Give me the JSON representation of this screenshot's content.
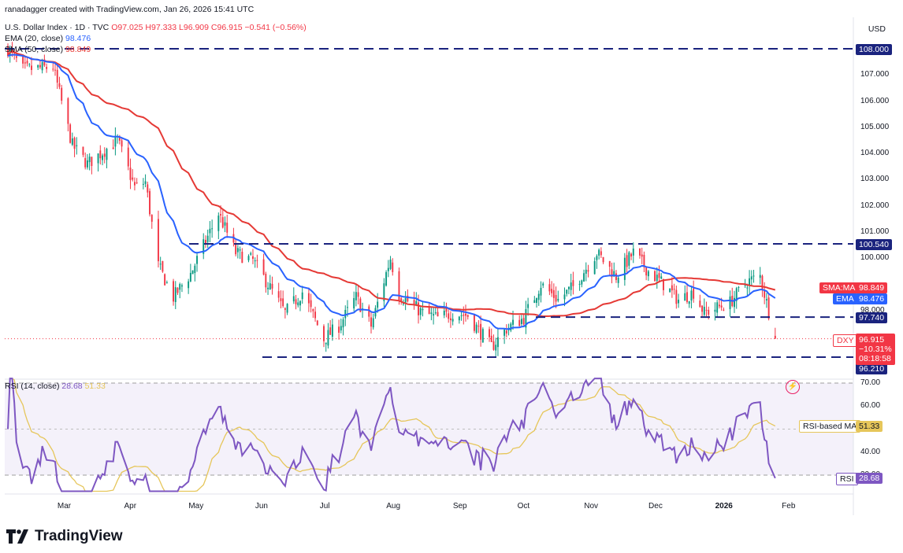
{
  "header": {
    "attribution": "ranadagger created with TradingView.com, Jan 26, 2026 15:41 UTC",
    "symbol": "U.S. Dollar Index · 1D · TVC",
    "ohlc": {
      "o": "O97.025",
      "h": "H97.333",
      "l": "L96.909",
      "c": "C96.915",
      "chg": "−0.541 (−0.56%)"
    },
    "ema_label": "EMA (20, close)",
    "ema_value": "98.476",
    "sma_label": "SMA (50, close)",
    "sma_value": "98.849",
    "rsi_label": "RSI (14, close)",
    "rsi_value": "28.68",
    "rsi_ma_value": "51.33"
  },
  "currency": "USD",
  "price_axis": [
    "108.000",
    "107.000",
    "106.000",
    "105.000",
    "104.000",
    "103.000",
    "102.000",
    "101.000",
    "100.000",
    "98.000"
  ],
  "rsi_axis": [
    "70.00",
    "60.00",
    "40.00",
    "30.00"
  ],
  "time_axis": [
    "Mar",
    "Apr",
    "May",
    "Jun",
    "Jul",
    "Aug",
    "Sep",
    "Oct",
    "Nov",
    "Dec",
    "2026",
    "Feb"
  ],
  "levels": [
    {
      "label": "108.000",
      "value": 108.0
    },
    {
      "label": "100.540",
      "value": 100.54
    },
    {
      "label": "97.740",
      "value": 97.74
    },
    {
      "label": "96.210",
      "value": 96.21
    }
  ],
  "tags": {
    "sma_name": "SMA:MA",
    "sma_val": "98.849",
    "ema_name": "EMA",
    "ema_val": "98.476",
    "dxy_name": "DXY",
    "dxy_val": "96.915",
    "dxy_chg": "−10.31%",
    "dxy_time": "08:18:58",
    "rsi_ma_name": "RSI-based MA",
    "rsi_ma_val": "51.33",
    "rsi_name": "RSI",
    "rsi_val": "28.68"
  },
  "brand": "TradingView",
  "colors": {
    "up": "#089981",
    "down": "#f23645",
    "ema": "#2962ff",
    "sma": "#e53935",
    "rsi": "#7e57c2",
    "rsi_ma": "#e6c65a",
    "level": "#1a237e"
  },
  "chart_data": {
    "type": "candlestick",
    "title": "U.S. Dollar Index · 1D · TVC",
    "ylim": [
      95.5,
      108.6
    ],
    "rsi_ylim": [
      23,
      72
    ],
    "rsi_bands": [
      30,
      70
    ],
    "anchors": [
      {
        "date": "2025-02-03",
        "close": 108.0
      },
      {
        "date": "2025-02-10",
        "close": 107.2
      },
      {
        "date": "2025-02-24",
        "close": 107.3
      },
      {
        "date": "2025-03-05",
        "close": 104.3
      },
      {
        "date": "2025-03-12",
        "close": 103.6
      },
      {
        "date": "2025-03-26",
        "close": 104.5
      },
      {
        "date": "2025-04-03",
        "close": 102.7
      },
      {
        "date": "2025-04-08",
        "close": 102.9
      },
      {
        "date": "2025-04-14",
        "close": 99.7
      },
      {
        "date": "2025-04-21",
        "close": 98.5
      },
      {
        "date": "2025-04-29",
        "close": 99.4
      },
      {
        "date": "2025-05-12",
        "close": 101.7
      },
      {
        "date": "2025-05-20",
        "close": 100.2
      },
      {
        "date": "2025-05-28",
        "close": 99.9
      },
      {
        "date": "2025-06-04",
        "close": 99.0
      },
      {
        "date": "2025-06-12",
        "close": 97.9
      },
      {
        "date": "2025-06-20",
        "close": 98.7
      },
      {
        "date": "2025-06-30",
        "close": 96.9
      },
      {
        "date": "2025-07-07",
        "close": 97.4
      },
      {
        "date": "2025-07-15",
        "close": 98.5
      },
      {
        "date": "2025-07-22",
        "close": 97.4
      },
      {
        "date": "2025-07-31",
        "close": 100.0
      },
      {
        "date": "2025-08-04",
        "close": 98.6
      },
      {
        "date": "2025-08-15",
        "close": 97.9
      },
      {
        "date": "2025-08-22",
        "close": 97.7
      },
      {
        "date": "2025-08-29",
        "close": 97.9
      },
      {
        "date": "2025-09-05",
        "close": 97.8
      },
      {
        "date": "2025-09-16",
        "close": 96.6
      },
      {
        "date": "2025-09-23",
        "close": 97.3
      },
      {
        "date": "2025-10-01",
        "close": 97.7
      },
      {
        "date": "2025-10-09",
        "close": 99.0
      },
      {
        "date": "2025-10-17",
        "close": 98.4
      },
      {
        "date": "2025-10-24",
        "close": 98.9
      },
      {
        "date": "2025-11-04",
        "close": 100.2
      },
      {
        "date": "2025-11-13",
        "close": 99.3
      },
      {
        "date": "2025-11-21",
        "close": 100.2
      },
      {
        "date": "2025-11-28",
        "close": 99.5
      },
      {
        "date": "2025-12-05",
        "close": 99.0
      },
      {
        "date": "2025-12-12",
        "close": 98.4
      },
      {
        "date": "2025-12-19",
        "close": 98.7
      },
      {
        "date": "2025-12-24",
        "close": 97.9
      },
      {
        "date": "2026-01-05",
        "close": 98.3
      },
      {
        "date": "2026-01-13",
        "close": 99.1
      },
      {
        "date": "2026-01-19",
        "close": 99.3
      },
      {
        "date": "2026-01-22",
        "close": 98.3
      },
      {
        "date": "2026-01-26",
        "close": 96.915
      }
    ]
  }
}
